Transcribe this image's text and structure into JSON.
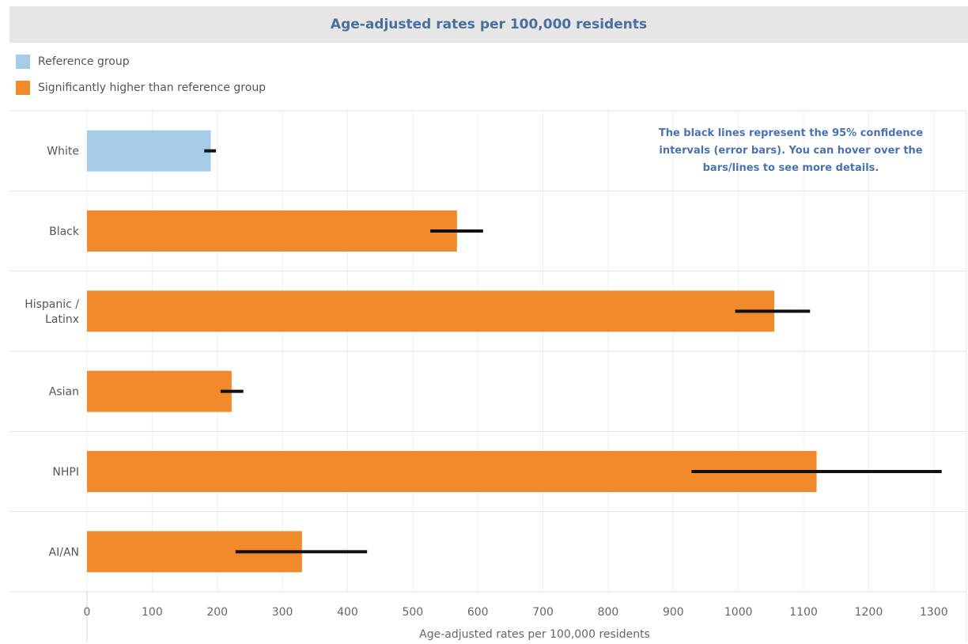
{
  "header": {
    "title": "Age-adjusted rates per 100,000 residents"
  },
  "legend": [
    {
      "label": "Reference group",
      "color": "#a6cbe6"
    },
    {
      "label": "Significantly higher than reference group",
      "color": "#f08a2b"
    }
  ],
  "annotation": "The black lines represent the 95% confidence intervals (error bars). You can hover over the bars/lines to see more details.",
  "chart_data": {
    "type": "bar",
    "orientation": "horizontal",
    "title": "Age-adjusted rates per 100,000 residents",
    "xlabel": "Age-adjusted rates per 100,000 residents",
    "ylabel": "",
    "xlim": [
      0,
      1350
    ],
    "xticks": [
      0,
      100,
      200,
      300,
      400,
      500,
      600,
      700,
      800,
      900,
      1000,
      1100,
      1200,
      1300
    ],
    "grid": true,
    "legend_position": "top-left",
    "categories": [
      {
        "label": [
          "White"
        ],
        "value": 190,
        "ci": [
          180,
          198
        ],
        "group": "Reference group",
        "color": "#a6cbe6"
      },
      {
        "label": [
          "Black"
        ],
        "value": 568,
        "ci": [
          527,
          608
        ],
        "group": "Significantly higher than reference group",
        "color": "#f08a2b"
      },
      {
        "label": [
          "Hispanic /",
          "Latinx"
        ],
        "value": 1055,
        "ci": [
          995,
          1110
        ],
        "group": "Significantly higher than reference group",
        "color": "#f08a2b"
      },
      {
        "label": [
          "Asian"
        ],
        "value": 222,
        "ci": [
          205,
          240
        ],
        "group": "Significantly higher than reference group",
        "color": "#f08a2b"
      },
      {
        "label": [
          "NHPI"
        ],
        "value": 1120,
        "ci": [
          928,
          1312
        ],
        "group": "Significantly higher than reference group",
        "color": "#f08a2b"
      },
      {
        "label": [
          "AI/AN"
        ],
        "value": 330,
        "ci": [
          228,
          430
        ],
        "group": "Significantly higher than reference group",
        "color": "#f08a2b"
      }
    ]
  }
}
